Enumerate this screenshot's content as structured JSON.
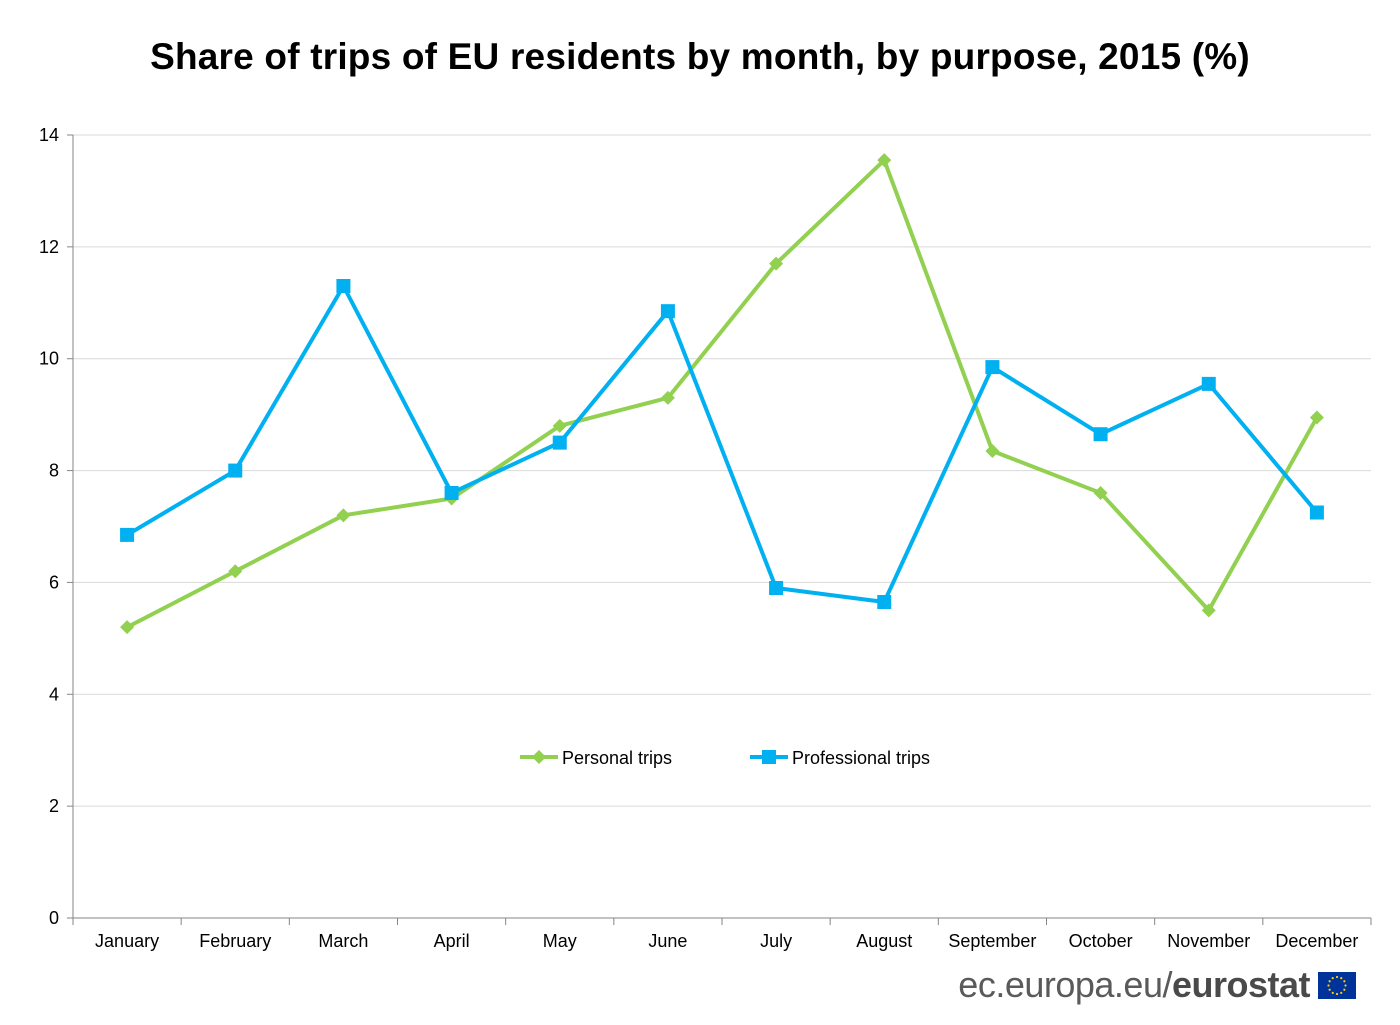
{
  "chart_data": {
    "type": "line",
    "title": "Share of trips of EU residents by month, by purpose, 2015 (%)",
    "xlabel": "",
    "ylabel": "",
    "ylim": [
      0,
      14
    ],
    "yticks": [
      "0",
      "2",
      "4",
      "6",
      "8",
      "10",
      "12",
      "14"
    ],
    "grid": true,
    "legend_position": "center",
    "categories": [
      "January",
      "February",
      "March",
      "April",
      "May",
      "June",
      "July",
      "August",
      "September",
      "October",
      "November",
      "December"
    ],
    "series": [
      {
        "name": "Personal trips",
        "color": "#92d050",
        "marker": "diamond",
        "values": [
          5.2,
          6.2,
          7.2,
          7.5,
          8.8,
          9.3,
          11.7,
          13.55,
          8.35,
          7.6,
          5.5,
          8.95
        ]
      },
      {
        "name": "Professional trips",
        "color": "#00b0f0",
        "marker": "square",
        "values": [
          6.85,
          8.0,
          11.3,
          7.6,
          8.5,
          10.85,
          5.9,
          5.65,
          9.85,
          8.65,
          9.55,
          7.25
        ]
      }
    ]
  },
  "footer": {
    "source_regular": "ec.europa.eu/",
    "source_bold": "eurostat"
  },
  "colors": {
    "grid": "#d9d9d9",
    "axis": "#868686"
  }
}
